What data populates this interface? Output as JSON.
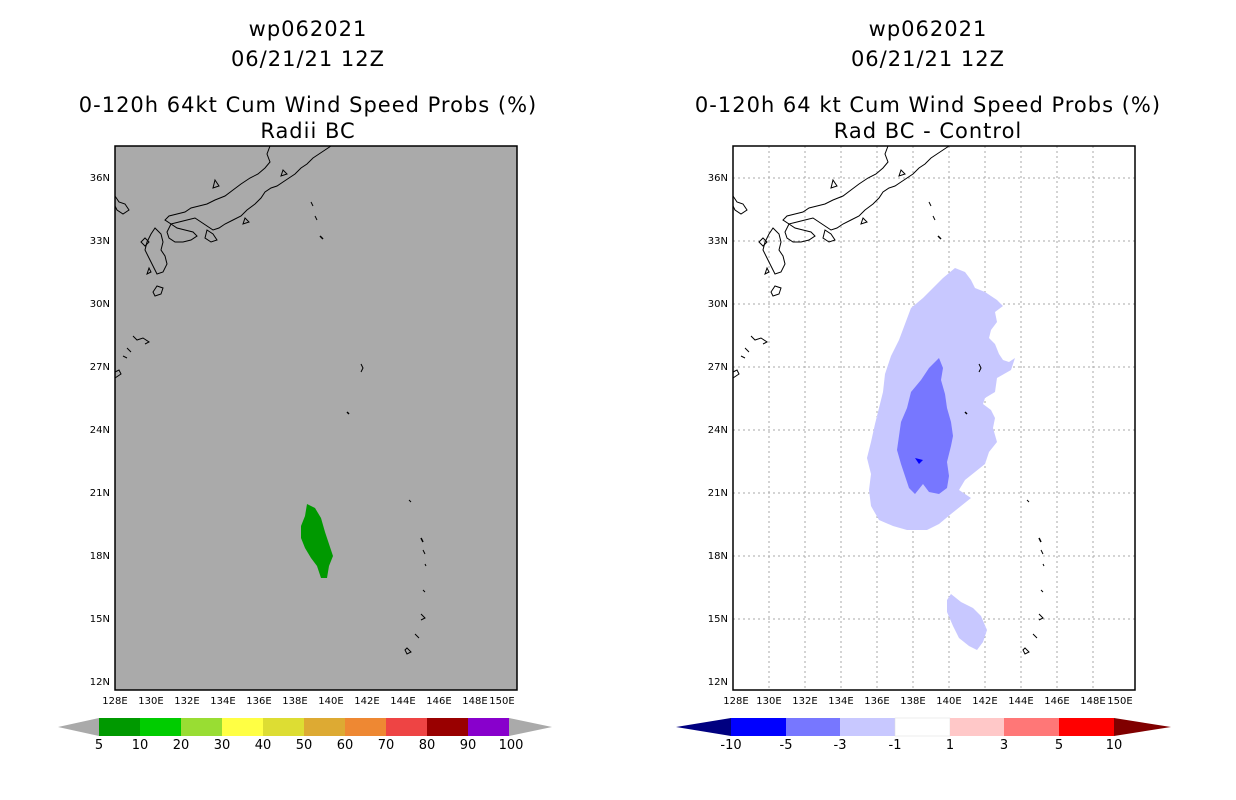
{
  "left_panel": {
    "title_line1": "wp062021",
    "title_line2": "06/21/21 12Z",
    "title_line3": "0-120h 64kt Cum Wind Speed Probs (%)",
    "title_line4": "Radii BC",
    "colorbar_labels": [
      "5",
      "10",
      "20",
      "30",
      "40",
      "50",
      "60",
      "70",
      "80",
      "90",
      "100"
    ],
    "colorbar_colors": [
      "#009900",
      "#00cc00",
      "#99dd33",
      "#ffff44",
      "#dddd33",
      "#ddaa33",
      "#ee8833",
      "#ee4444",
      "#990000",
      "#8800cc"
    ]
  },
  "right_panel": {
    "title_line1": "wp062021",
    "title_line2": "06/21/21 12Z",
    "title_line3": "0-120h 64 kt Cum Wind Speed Probs (%)",
    "title_line4": "Rad BC - Control",
    "colorbar_labels": [
      "-10",
      "-5",
      "-3",
      "-1",
      "1",
      "3",
      "5",
      "10"
    ],
    "colorbar_colors": [
      "#0000ff",
      "#7777ff",
      "#c8c8ff",
      "#ffffff",
      "#ffc8c8",
      "#ff7777",
      "#ff0000"
    ]
  },
  "axes": {
    "lat_labels": [
      "36N",
      "33N",
      "30N",
      "27N",
      "24N",
      "21N",
      "18N",
      "15N",
      "12N"
    ],
    "lon_labels": [
      "128E",
      "130E",
      "132E",
      "134E",
      "136E",
      "138E",
      "140E",
      "142E",
      "144E",
      "146E",
      "148E",
      "150E"
    ]
  },
  "colors": {
    "map_background_left": "#aaaaaa",
    "probability_area_left": "#009900",
    "diff_light": "#c8c8ff",
    "diff_medium": "#7777ff",
    "diff_dark": "#0000ff"
  }
}
